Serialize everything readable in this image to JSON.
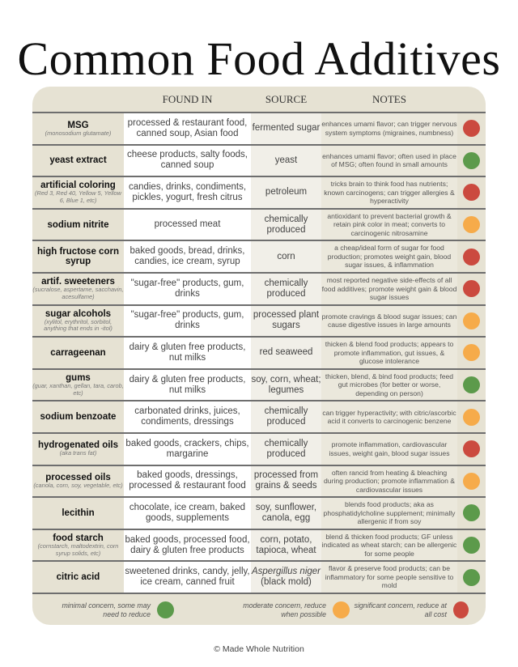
{
  "title": "Common Food Additives",
  "headers": {
    "found_in": "FOUND IN",
    "source": "SOURCE",
    "notes": "NOTES"
  },
  "colors": {
    "red": "#cb4a3f",
    "orange": "#f6ab4a",
    "green": "#5c9a4b"
  },
  "rows": [
    {
      "name": "MSG",
      "sub": "(monosodium glutamate)",
      "found": "processed & restaurant food, canned soup, Asian food",
      "source": "fermented sugar",
      "notes": "enhances umami flavor; can trigger nervous system symptoms (migraines, numbness)",
      "level": "red"
    },
    {
      "name": "yeast extract",
      "sub": "",
      "found": "cheese products, salty foods, canned soup",
      "source": "yeast",
      "notes": "enhances umami flavor; often used in place of MSG; often found in small amounts",
      "level": "green"
    },
    {
      "name": "artificial coloring",
      "sub": "(Red 3, Red 40, Yellow 5, Yellow 6, Blue 1, etc)",
      "found": "candies, drinks, condiments, pickles, yogurt, fresh citrus",
      "source": "petroleum",
      "notes": "tricks brain to think food has nutrients; known carcinogens; can trigger allergies & hyperactivity",
      "level": "red"
    },
    {
      "name": "sodium nitrite",
      "sub": "",
      "found": "processed meat",
      "source": "chemically produced",
      "notes": "antioxidant to prevent bacterial growth & retain pink color in meat; converts to carcinogenic nitrosamine",
      "level": "orange"
    },
    {
      "name": "high fructose corn syrup",
      "sub": "",
      "found": "baked goods, bread, drinks, candies, ice cream, syrup",
      "source": "corn",
      "notes": "a cheap/ideal form of sugar for food production; promotes weight gain, blood sugar issues, & inflammation",
      "level": "red"
    },
    {
      "name": "artif. sweeteners",
      "sub": "(sucralose, aspertame, sacchavin, acesulfame)",
      "found": "\"sugar-free\" products, gum, drinks",
      "source": "chemically produced",
      "notes": "most reported negative side-effects of all food additives; promote weight gain & blood sugar issues",
      "level": "red"
    },
    {
      "name": "sugar alcohols",
      "sub": "(xylitol, erythritol, sorbitol, anything that ends in -itol)",
      "found": "\"sugar-free\" products, gum, drinks",
      "source": "processed plant sugars",
      "notes": "promote cravings & blood sugar issues; can cause digestive issues in large amounts",
      "level": "orange"
    },
    {
      "name": "carrageenan",
      "sub": "",
      "found": "dairy & gluten free products, nut milks",
      "source": "red seaweed",
      "notes": "thicken & blend food products; appears to promote inflammation, gut issues, & glucose intolerance",
      "level": "orange"
    },
    {
      "name": "gums",
      "sub": "(guar, xanthan, gellan, tara, carob, etc)",
      "found": "dairy & gluten free products, nut milks",
      "source": "soy, corn, wheat; legumes",
      "notes": "thicken, blend, & bind food products; feed gut microbes (for better or worse, depending on person)",
      "level": "green"
    },
    {
      "name": "sodium benzoate",
      "sub": "",
      "found": "carbonated drinks, juices, condiments, dressings",
      "source": "chemically produced",
      "notes": "can trigger hyperactivity; with citric/ascorbic acid it converts to carcinogenic benzene",
      "level": "orange"
    },
    {
      "name": "hydrogenated oils",
      "sub": "(aka trans fat)",
      "found": "baked goods, crackers, chips, margarine",
      "source": "chemically produced",
      "notes": "promote inflammation, cardiovascular issues, weight gain, blood sugar issues",
      "level": "red"
    },
    {
      "name": "processed oils",
      "sub": "(canola, corn, soy, vegetable, etc)",
      "found": "baked goods, dressings, processed & restaurant food",
      "source": "processed from grains & seeds",
      "notes": "often rancid from heating & bleaching during production; promote inflammation & cardiovascular issues",
      "level": "orange"
    },
    {
      "name": "lecithin",
      "sub": "",
      "found": "chocolate, ice cream, baked goods, supplements",
      "source": "soy, sunflower, canola, egg",
      "notes": "blends food products; aka as phosphatidylcholine supplement; minimally allergenic if from soy",
      "level": "green"
    },
    {
      "name": "food starch",
      "sub": "(cornstarch, maltodextrin, corn syrup solids, etc)",
      "found": "baked goods, processed food, dairy & gluten free products",
      "source": "corn, potato, tapioca, wheat",
      "notes": "blend & thicken food products; GF unless indicated as wheat starch; can be allergenic for some people",
      "level": "green"
    },
    {
      "name": "citric acid",
      "sub": "",
      "found": "sweetened drinks, candy, jelly, ice cream, canned fruit",
      "source": "Aspergillus niger (black mold)",
      "notes": "flavor & preserve food products; can be inflammatory for some people sensitive to mold",
      "level": "green"
    }
  ],
  "legend": [
    {
      "text": "minimal concern, some may need to reduce",
      "level": "green"
    },
    {
      "text": "moderate concern, reduce when possible",
      "level": "orange"
    },
    {
      "text": "significant concern, reduce at all cost",
      "level": "red"
    }
  ],
  "footer": "© Made Whole Nutrition"
}
